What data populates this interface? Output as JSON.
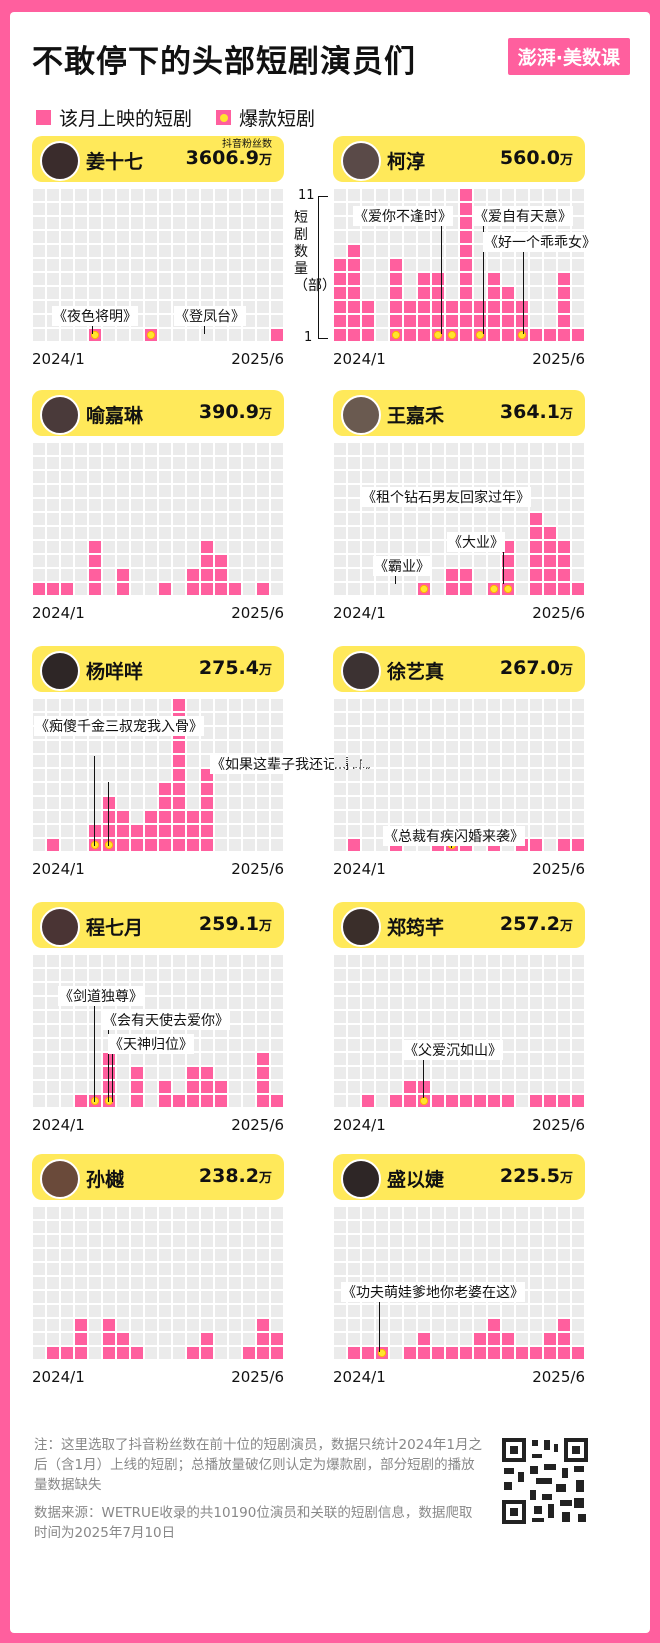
{
  "title": "不敢停下的头部短剧演员们",
  "brand": "澎湃·美数课",
  "legend": {
    "monthly": "该月上映的短剧",
    "hit": "爆款短剧"
  },
  "fans_label": "抖音粉丝数",
  "fans_unit": "万",
  "y_axis": {
    "max_label": "11",
    "min_label": "1",
    "title": "短剧数量（部）"
  },
  "x_labels": {
    "start": "2024/1",
    "end": "2025/6"
  },
  "notes": {
    "note": "注：这里选取了抖音粉丝数在前十位的短剧演员，数据只统计2024年1月之后（含1月）上线的短剧；总播放量破亿则认定为爆款剧，部分短剧的播放量数据缺失",
    "source": "数据来源：WETRUE收录的共10190位演员和关联的短剧信息，数据爬取时间为2025年7月10日"
  },
  "colors": {
    "bar": "#ff5f9e",
    "empty": "#ebebeb",
    "hit_dot": "#ffe52e",
    "header": "#ffe95a",
    "bg": "#ff5f9e"
  },
  "chart_data": [
    {
      "type": "bar",
      "actor": "姜十七",
      "fans": "3606.9",
      "months": 18,
      "ylim": [
        0,
        11
      ],
      "values": [
        0,
        0,
        0,
        0,
        1,
        0,
        0,
        0,
        1,
        0,
        0,
        0,
        0,
        0,
        0,
        0,
        0,
        1
      ],
      "hits": [
        4,
        8
      ],
      "annotations": [
        "《夜色将明》",
        "《登凤台》"
      ]
    },
    {
      "type": "bar",
      "actor": "柯淳",
      "fans": "560.0",
      "months": 18,
      "ylim": [
        0,
        11
      ],
      "values": [
        6,
        7,
        3,
        0,
        6,
        3,
        5,
        5,
        3,
        11,
        3,
        5,
        4,
        3,
        1,
        1,
        5,
        1
      ],
      "hits": [
        4,
        7,
        8,
        10,
        13
      ],
      "annotations": [
        "《爱你不逢时》",
        "《爱自有天意》",
        "《好一个乖乖女》"
      ]
    },
    {
      "type": "bar",
      "actor": "喻嘉琳",
      "fans": "390.9",
      "months": 18,
      "ylim": [
        0,
        11
      ],
      "values": [
        1,
        1,
        1,
        0,
        4,
        0,
        2,
        0,
        0,
        1,
        0,
        2,
        4,
        3,
        1,
        0,
        1,
        0
      ],
      "hits": []
    },
    {
      "type": "bar",
      "actor": "王嘉禾",
      "fans": "364.1",
      "months": 18,
      "ylim": [
        0,
        11
      ],
      "values": [
        0,
        0,
        0,
        0,
        0,
        0,
        1,
        0,
        2,
        2,
        0,
        1,
        4,
        0,
        6,
        5,
        4,
        1
      ],
      "hits": [
        6,
        11,
        12
      ],
      "annotations": [
        "《租个钻石男友回家过年》",
        "《霸业》",
        "《大业》"
      ]
    },
    {
      "type": "bar",
      "actor": "杨咩咩",
      "fans": "275.4",
      "months": 18,
      "ylim": [
        0,
        11
      ],
      "values": [
        0,
        1,
        0,
        0,
        2,
        4,
        3,
        2,
        3,
        5,
        11,
        3,
        6,
        0,
        0,
        0,
        0,
        0
      ],
      "hits": [
        4,
        5
      ],
      "annotations": [
        "《痴傻千金三叔宠我入骨》",
        "《如果这辈子我还记得你》"
      ]
    },
    {
      "type": "bar",
      "actor": "徐艺真",
      "fans": "267.0",
      "months": 18,
      "ylim": [
        0,
        11
      ],
      "values": [
        0,
        1,
        0,
        0,
        1,
        0,
        0,
        1,
        1,
        1,
        0,
        1,
        0,
        1,
        1,
        0,
        1,
        1
      ],
      "hits": [
        8
      ],
      "annotations": [
        "《总裁有疾闪婚来袭》"
      ]
    },
    {
      "type": "bar",
      "actor": "程七月",
      "fans": "259.1",
      "months": 18,
      "ylim": [
        0,
        11
      ],
      "values": [
        0,
        0,
        0,
        1,
        1,
        4,
        0,
        3,
        0,
        2,
        1,
        3,
        3,
        2,
        0,
        0,
        4,
        1
      ],
      "hits": [
        4,
        5
      ],
      "annotations": [
        "《剑道独尊》",
        "《会有天使去爱你》",
        "《天神归位》"
      ]
    },
    {
      "type": "bar",
      "actor": "郑筠芊",
      "fans": "257.2",
      "months": 18,
      "ylim": [
        0,
        11
      ],
      "values": [
        0,
        0,
        1,
        0,
        1,
        2,
        2,
        1,
        1,
        1,
        1,
        1,
        1,
        0,
        1,
        1,
        1,
        1
      ],
      "hits": [
        6
      ],
      "annotations": [
        "《父爱沉如山》"
      ]
    },
    {
      "type": "bar",
      "actor": "孙樾",
      "fans": "238.2",
      "months": 18,
      "ylim": [
        0,
        11
      ],
      "values": [
        0,
        1,
        1,
        3,
        0,
        3,
        2,
        1,
        0,
        0,
        0,
        1,
        2,
        0,
        0,
        1,
        3,
        2
      ],
      "hits": []
    },
    {
      "type": "bar",
      "actor": "盛以婕",
      "fans": "225.5",
      "months": 18,
      "ylim": [
        0,
        11
      ],
      "values": [
        0,
        1,
        1,
        1,
        0,
        1,
        2,
        1,
        1,
        1,
        2,
        3,
        2,
        1,
        1,
        2,
        3,
        1
      ],
      "hits": [
        3
      ],
      "annotations": [
        "《功夫萌娃爹地你老婆在这》"
      ]
    }
  ]
}
